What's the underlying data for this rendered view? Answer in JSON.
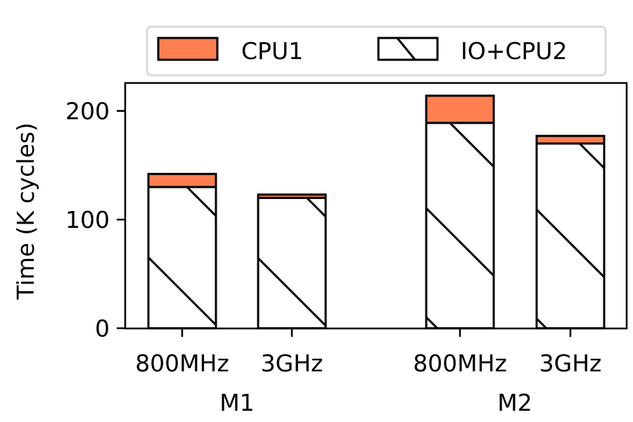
{
  "chart_data": {
    "type": "bar",
    "stacked": true,
    "title": "",
    "xlabel": "",
    "ylabel": "Time (K cycles)",
    "ylim": [
      0,
      225
    ],
    "yticks": [
      0,
      100,
      200
    ],
    "groups": [
      {
        "label": "M1",
        "categories": [
          "800MHz",
          "3GHz"
        ]
      },
      {
        "label": "M2",
        "categories": [
          "800MHz",
          "3GHz"
        ]
      }
    ],
    "categories": [
      "M1 800MHz",
      "M1 3GHz",
      "M2 800MHz",
      "M2 3GHz"
    ],
    "tick_labels": [
      "800MHz",
      "3GHz",
      "800MHz",
      "3GHz"
    ],
    "series": [
      {
        "name": "IO+CPU2",
        "values": [
          130,
          120,
          189,
          170
        ],
        "color": "#ffffff",
        "hatch": "\\"
      },
      {
        "name": "CPU1",
        "values": [
          12,
          3,
          25,
          7
        ],
        "color": "#ff7f50"
      }
    ],
    "legend": {
      "position": "top",
      "entries": [
        "CPU1",
        "IO+CPU2"
      ]
    },
    "grid": false
  }
}
